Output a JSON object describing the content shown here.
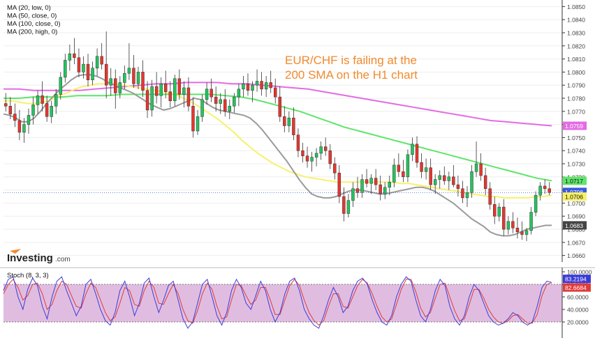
{
  "ma_legend": [
    "MA (20, low, 0)",
    "MA (50, close, 0)",
    "MA (100, close, 0)",
    "MA (200, high, 0)"
  ],
  "annotation": [
    "EUR/CHF is failing at the",
    "200 SMA on the H1 chart"
  ],
  "logo": {
    "brand": "Investing",
    "suffix": ".com"
  },
  "stoch_label": "Stoch (8, 3, 3)",
  "colors": {
    "bull": "#22c55e",
    "bear": "#e8352e",
    "ma20": "#9a9a9a",
    "ma50": "#f7f16a",
    "ma100": "#5fe56a",
    "ma200": "#e36be3",
    "annotation": "#f28a2e",
    "stoch_k": "#3b3bd9",
    "stoch_d": "#e03b3b",
    "stoch_band": "#e0bde0",
    "last_price": "#3a5bd9"
  },
  "price_axis": {
    "ticks": [
      "1.0850",
      "1.0840",
      "1.0830",
      "1.0820",
      "1.0810",
      "1.0800",
      "1.0790",
      "1.0780",
      "1.0770",
      "1.0760",
      "1.0750",
      "1.0740",
      "1.0730",
      "1.0720",
      "1.0710",
      "1.0700",
      "1.0690",
      "1.0680",
      "1.0670",
      "1.0660"
    ],
    "tags": [
      {
        "value": "1.0759",
        "color": "#e36be3",
        "text": "#ffffff"
      },
      {
        "value": "1.0717",
        "color": "#5fe56a",
        "text": "#111111"
      },
      {
        "value": "1.0708",
        "color": "#3a5bd9",
        "text": "#ffffff"
      },
      {
        "value": "1.0706",
        "color": "#f7f16a",
        "text": "#111111"
      },
      {
        "value": "1.0683",
        "color": "#444444",
        "text": "#ffffff"
      }
    ]
  },
  "stoch_axis": {
    "ticks": [
      "100.0000",
      "80.0000",
      "60.0000",
      "40.0000",
      "20.0000"
    ],
    "tags": [
      {
        "value": "83.2194",
        "color": "#3b3bd9",
        "text": "#ffffff"
      },
      {
        "value": "82.6684",
        "color": "#e03b3b",
        "text": "#ffffff"
      }
    ]
  },
  "chart_data": {
    "type": "candlestick",
    "ylim": [
      1.0655,
      1.0855
    ],
    "stoch_ylim": [
      0,
      100
    ],
    "stoch_bands": [
      20,
      80
    ],
    "last_price": 1.0708,
    "candles": [
      [
        1.0776,
        1.0784,
        1.077,
        1.0774
      ],
      [
        1.0774,
        1.0781,
        1.0764,
        1.0768
      ],
      [
        1.0768,
        1.0776,
        1.0758,
        1.0763
      ],
      [
        1.0763,
        1.0771,
        1.0748,
        1.0754
      ],
      [
        1.0754,
        1.0765,
        1.0746,
        1.076
      ],
      [
        1.076,
        1.0772,
        1.0753,
        1.0767
      ],
      [
        1.0767,
        1.0781,
        1.076,
        1.0775
      ],
      [
        1.0775,
        1.0786,
        1.0768,
        1.0782
      ],
      [
        1.0782,
        1.0793,
        1.077,
        1.0776
      ],
      [
        1.0776,
        1.0782,
        1.0762,
        1.0766
      ],
      [
        1.0766,
        1.0778,
        1.0761,
        1.0774
      ],
      [
        1.0774,
        1.0787,
        1.0768,
        1.0783
      ],
      [
        1.0783,
        1.08,
        1.0779,
        1.0796
      ],
      [
        1.0796,
        1.0814,
        1.0792,
        1.0809
      ],
      [
        1.0809,
        1.0821,
        1.0801,
        1.0814
      ],
      [
        1.0814,
        1.0826,
        1.0806,
        1.0811
      ],
      [
        1.0811,
        1.0818,
        1.0796,
        1.08
      ],
      [
        1.08,
        1.0812,
        1.0795,
        1.0806
      ],
      [
        1.0806,
        1.0814,
        1.0789,
        1.0794
      ],
      [
        1.0794,
        1.0808,
        1.079,
        1.0803
      ],
      [
        1.0803,
        1.0818,
        1.0797,
        1.0812
      ],
      [
        1.0812,
        1.0822,
        1.0802,
        1.0806
      ],
      [
        1.0806,
        1.0831,
        1.078,
        1.079
      ],
      [
        1.079,
        1.0803,
        1.0782,
        1.0795
      ],
      [
        1.0795,
        1.0802,
        1.0772,
        1.0784
      ],
      [
        1.0784,
        1.0797,
        1.078,
        1.0792
      ],
      [
        1.0792,
        1.0805,
        1.0787,
        1.0799
      ],
      [
        1.0799,
        1.0822,
        1.0794,
        1.0803
      ],
      [
        1.0803,
        1.0813,
        1.0788,
        1.0791
      ],
      [
        1.0791,
        1.0804,
        1.0787,
        1.08
      ],
      [
        1.08,
        1.0809,
        1.0781,
        1.0786
      ],
      [
        1.0786,
        1.0793,
        1.0765,
        1.0771
      ],
      [
        1.0771,
        1.0794,
        1.0766,
        1.0789
      ],
      [
        1.0789,
        1.08,
        1.0776,
        1.0782
      ],
      [
        1.0782,
        1.0796,
        1.0773,
        1.0791
      ],
      [
        1.0791,
        1.0801,
        1.078,
        1.0785
      ],
      [
        1.0785,
        1.0793,
        1.0773,
        1.0778
      ],
      [
        1.0778,
        1.0798,
        1.0774,
        1.0795
      ],
      [
        1.0795,
        1.0802,
        1.0779,
        1.0783
      ],
      [
        1.0783,
        1.0793,
        1.0773,
        1.0788
      ],
      [
        1.0788,
        1.0796,
        1.077,
        1.0774
      ],
      [
        1.0774,
        1.0781,
        1.075,
        1.0755
      ],
      [
        1.0755,
        1.0771,
        1.0752,
        1.0766
      ],
      [
        1.0766,
        1.0783,
        1.0762,
        1.0779
      ],
      [
        1.0779,
        1.0792,
        1.0775,
        1.0787
      ],
      [
        1.0787,
        1.0795,
        1.0777,
        1.0781
      ],
      [
        1.0781,
        1.0789,
        1.077,
        1.0776
      ],
      [
        1.0776,
        1.0784,
        1.0768,
        1.0779
      ],
      [
        1.0779,
        1.0787,
        1.0766,
        1.077
      ],
      [
        1.077,
        1.0779,
        1.0764,
        1.0774
      ],
      [
        1.0774,
        1.0784,
        1.0769,
        1.0781
      ],
      [
        1.0781,
        1.0791,
        1.0774,
        1.0787
      ],
      [
        1.0787,
        1.0797,
        1.0781,
        1.0791
      ],
      [
        1.0791,
        1.0799,
        1.0782,
        1.0786
      ],
      [
        1.0786,
        1.0793,
        1.0777,
        1.079
      ],
      [
        1.079,
        1.0802,
        1.0785,
        1.0793
      ],
      [
        1.0793,
        1.08,
        1.0782,
        1.0787
      ],
      [
        1.0787,
        1.0797,
        1.0781,
        1.0792
      ],
      [
        1.0792,
        1.0801,
        1.0784,
        1.0788
      ],
      [
        1.0788,
        1.0795,
        1.0776,
        1.0781
      ],
      [
        1.0781,
        1.0789,
        1.0762,
        1.0766
      ],
      [
        1.0766,
        1.0774,
        1.0754,
        1.0759
      ],
      [
        1.0759,
        1.077,
        1.0754,
        1.0765
      ],
      [
        1.0765,
        1.0773,
        1.0748,
        1.0752
      ],
      [
        1.0752,
        1.0757,
        1.0735,
        1.074
      ],
      [
        1.074,
        1.0746,
        1.0731,
        1.0736
      ],
      [
        1.0736,
        1.0743,
        1.0727,
        1.0732
      ],
      [
        1.0732,
        1.0739,
        1.0724,
        1.0735
      ],
      [
        1.0735,
        1.0742,
        1.0728,
        1.0738
      ],
      [
        1.0738,
        1.0747,
        1.0733,
        1.0743
      ],
      [
        1.0743,
        1.075,
        1.0736,
        1.074
      ],
      [
        1.074,
        1.0745,
        1.0726,
        1.073
      ],
      [
        1.073,
        1.0735,
        1.0718,
        1.0723
      ],
      [
        1.0723,
        1.0729,
        1.07,
        1.0705
      ],
      [
        1.0705,
        1.0712,
        1.0686,
        1.0692
      ],
      [
        1.0692,
        1.0707,
        1.0689,
        1.0702
      ],
      [
        1.0702,
        1.0716,
        1.0697,
        1.0711
      ],
      [
        1.0711,
        1.072,
        1.0704,
        1.0708
      ],
      [
        1.0708,
        1.0722,
        1.0704,
        1.0718
      ],
      [
        1.0718,
        1.0726,
        1.0712,
        1.0715
      ],
      [
        1.0715,
        1.0722,
        1.0707,
        1.0719
      ],
      [
        1.0719,
        1.0726,
        1.071,
        1.0714
      ],
      [
        1.0714,
        1.0721,
        1.0702,
        1.0707
      ],
      [
        1.0707,
        1.0716,
        1.0703,
        1.0712
      ],
      [
        1.0712,
        1.0721,
        1.0706,
        1.0716
      ],
      [
        1.0716,
        1.0734,
        1.0712,
        1.0729
      ],
      [
        1.0729,
        1.0738,
        1.072,
        1.0724
      ],
      [
        1.0724,
        1.0733,
        1.0716,
        1.072
      ],
      [
        1.072,
        1.0741,
        1.0716,
        1.0737
      ],
      [
        1.0737,
        1.075,
        1.0732,
        1.0745
      ],
      [
        1.0745,
        1.0751,
        1.0727,
        1.0731
      ],
      [
        1.0731,
        1.0738,
        1.0719,
        1.0724
      ],
      [
        1.0724,
        1.0734,
        1.0718,
        1.0727
      ],
      [
        1.0727,
        1.0734,
        1.071,
        1.0714
      ],
      [
        1.0714,
        1.0722,
        1.0707,
        1.0718
      ],
      [
        1.0718,
        1.0725,
        1.0711,
        1.0721
      ],
      [
        1.0721,
        1.0728,
        1.0714,
        1.0717
      ],
      [
        1.0717,
        1.0724,
        1.071,
        1.072
      ],
      [
        1.072,
        1.0729,
        1.0712,
        1.0714
      ],
      [
        1.0714,
        1.0721,
        1.0705,
        1.0711
      ],
      [
        1.0711,
        1.0717,
        1.07,
        1.0704
      ],
      [
        1.0704,
        1.0713,
        1.0697,
        1.0708
      ],
      [
        1.0708,
        1.0729,
        1.0704,
        1.0724
      ],
      [
        1.0724,
        1.0747,
        1.072,
        1.073
      ],
      [
        1.073,
        1.0738,
        1.0717,
        1.0721
      ],
      [
        1.0721,
        1.0727,
        1.0706,
        1.0711
      ],
      [
        1.0711,
        1.0716,
        1.0695,
        1.0699
      ],
      [
        1.0699,
        1.0705,
        1.0684,
        1.069
      ],
      [
        1.069,
        1.07,
        1.0686,
        1.0697
      ],
      [
        1.0697,
        1.0703,
        1.0675,
        1.068
      ],
      [
        1.068,
        1.069,
        1.0676,
        1.0686
      ],
      [
        1.0686,
        1.0693,
        1.0677,
        1.0681
      ],
      [
        1.0681,
        1.0689,
        1.0673,
        1.0678
      ],
      [
        1.0678,
        1.0686,
        1.0672,
        1.0676
      ],
      [
        1.0676,
        1.0681,
        1.0671,
        1.0679
      ],
      [
        1.0679,
        1.0697,
        1.0676,
        1.0693
      ],
      [
        1.0693,
        1.0709,
        1.069,
        1.0706
      ],
      [
        1.0706,
        1.0716,
        1.0702,
        1.0713
      ],
      [
        1.0713,
        1.0718,
        1.0707,
        1.0711
      ],
      [
        1.0711,
        1.0716,
        1.0706,
        1.0708
      ]
    ],
    "ma20": [
      1.0768,
      1.0767,
      1.0765,
      1.0762,
      1.0762,
      1.0765,
      1.077,
      1.0776,
      1.0781,
      1.0786,
      1.079,
      1.0794,
      1.0797,
      1.0798,
      1.0798,
      1.0797,
      1.0795,
      1.0792,
      1.079,
      1.0788,
      1.0786,
      1.0784,
      1.0781,
      1.0778,
      1.0775,
      1.0773,
      1.0771,
      1.0772,
      1.0774,
      1.0776,
      1.0778,
      1.078,
      1.0779,
      1.0776,
      1.0773,
      1.0771,
      1.077,
      1.0769,
      1.0768,
      1.0767,
      1.0765,
      1.0761,
      1.0756,
      1.075,
      1.0744,
      1.0738,
      1.0732,
      1.0725,
      1.0718,
      1.0712,
      1.0707,
      1.0705,
      1.0704,
      1.0704,
      1.0705,
      1.0707,
      1.0709,
      1.071,
      1.071,
      1.0709,
      1.0708,
      1.0707,
      1.0707,
      1.0708,
      1.0709,
      1.071,
      1.0711,
      1.0712,
      1.0712,
      1.0711,
      1.0709,
      1.0706,
      1.0703,
      1.07,
      1.0696,
      1.0692,
      1.0688,
      1.0685,
      1.0682,
      1.0678,
      1.0676,
      1.0675,
      1.0675,
      1.0676,
      1.0678,
      1.068,
      1.0681,
      1.0682,
      1.0683,
      1.0683
    ],
    "ma50": [
      1.0778,
      1.0778,
      1.0777,
      1.0776,
      1.0776,
      1.0777,
      1.0779,
      1.0782,
      1.0784,
      1.0787,
      1.0789,
      1.079,
      1.0791,
      1.0791,
      1.0791,
      1.079,
      1.0789,
      1.0788,
      1.0787,
      1.0786,
      1.0785,
      1.0784,
      1.0782,
      1.0779,
      1.0776,
      1.0772,
      1.0768,
      1.0764,
      1.0759,
      1.0754,
      1.0748,
      1.0743,
      1.0738,
      1.0734,
      1.073,
      1.0727,
      1.0724,
      1.0722,
      1.072,
      1.0719,
      1.0718,
      1.0717,
      1.0716,
      1.0716,
      1.0716,
      1.0716,
      1.0716,
      1.0716,
      1.0716,
      1.0716,
      1.0715,
      1.0715,
      1.0714,
      1.0713,
      1.0712,
      1.0711,
      1.071,
      1.0709,
      1.0708,
      1.0707,
      1.0706,
      1.0705,
      1.0705,
      1.0704,
      1.0704,
      1.0704,
      1.0704,
      1.0705,
      1.0705,
      1.0706
    ],
    "ma100": [
      1.078,
      1.078,
      1.0781,
      1.0781,
      1.0781,
      1.0782,
      1.0782,
      1.0782,
      1.0783,
      1.0783,
      1.0783,
      1.0783,
      1.0783,
      1.0783,
      1.0783,
      1.0782,
      1.0781,
      1.0779,
      1.0776,
      1.0773,
      1.077,
      1.0766,
      1.0762,
      1.0758,
      1.0755,
      1.0752,
      1.0749,
      1.0746,
      1.0743,
      1.074,
      1.0737,
      1.0734,
      1.0731,
      1.0728,
      1.0725,
      1.0722,
      1.0719,
      1.0717
    ],
    "ma200": [
      1.0787,
      1.0787,
      1.0786,
      1.0786,
      1.0786,
      1.0786,
      1.0787,
      1.0788,
      1.0789,
      1.079,
      1.0791,
      1.0791,
      1.0792,
      1.0792,
      1.0792,
      1.0791,
      1.0791,
      1.079,
      1.0789,
      1.0788,
      1.0787,
      1.0785,
      1.0783,
      1.0781,
      1.0779,
      1.0777,
      1.0775,
      1.0773,
      1.0771,
      1.0769,
      1.0767,
      1.0765,
      1.0763,
      1.0762,
      1.0761,
      1.076,
      1.0759
    ],
    "stoch_k": [
      70,
      88,
      92,
      60,
      40,
      72,
      90,
      78,
      45,
      25,
      60,
      85,
      92,
      70,
      50,
      30,
      45,
      80,
      88,
      65,
      40,
      22,
      15,
      35,
      70,
      85,
      60,
      30,
      50,
      82,
      90,
      60,
      35,
      55,
      78,
      85,
      55,
      25,
      10,
      20,
      50,
      80,
      88,
      60,
      30,
      15,
      35,
      70,
      88,
      75,
      50,
      40,
      62,
      85,
      70,
      40,
      20,
      35,
      65,
      85,
      90,
      70,
      40,
      25,
      15,
      10,
      30,
      55,
      75,
      60,
      35,
      45,
      70,
      85,
      90,
      80,
      55,
      35,
      20,
      15,
      30,
      60,
      80,
      92,
      85,
      55,
      30,
      20,
      40,
      70,
      88,
      78,
      45,
      25,
      15,
      30,
      60,
      80,
      70,
      50,
      30,
      20,
      15,
      18,
      25,
      35,
      30,
      20,
      15,
      20,
      45,
      75,
      85,
      83
    ],
    "stoch_d": [
      65,
      80,
      88,
      75,
      55,
      62,
      80,
      82,
      65,
      40,
      48,
      70,
      85,
      80,
      62,
      45,
      42,
      65,
      82,
      75,
      55,
      35,
      22,
      28,
      50,
      75,
      70,
      48,
      45,
      70,
      85,
      75,
      50,
      48,
      65,
      80,
      65,
      40,
      22,
      18,
      38,
      65,
      82,
      72,
      45,
      25,
      28,
      55,
      80,
      78,
      62,
      48,
      55,
      75,
      75,
      55,
      32,
      32,
      55,
      78,
      88,
      78,
      55,
      35,
      22,
      15,
      22,
      45,
      65,
      65,
      45,
      42,
      60,
      78,
      88,
      82,
      65,
      45,
      28,
      20,
      25,
      48,
      72,
      88,
      88,
      68,
      42,
      28,
      35,
      58,
      80,
      82,
      60,
      38,
      22,
      25,
      48,
      72,
      72,
      58,
      40,
      28,
      20,
      18,
      22,
      30,
      32,
      25,
      18,
      18,
      32,
      62,
      80,
      82.67
    ]
  }
}
